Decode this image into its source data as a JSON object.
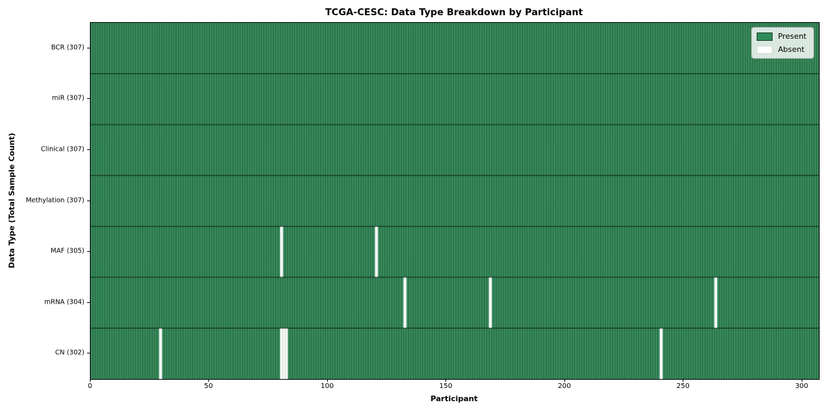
{
  "chart_data": {
    "type": "heatmap",
    "title": "TCGA-CESC: Data Type Breakdown by Participant",
    "xlabel": "Participant",
    "ylabel": "Data Type (Total Sample Count)",
    "n_participants": 307,
    "x_ticks": [
      0,
      50,
      100,
      150,
      200,
      250,
      300
    ],
    "rows": [
      {
        "label": "BCR (307)",
        "total": 307,
        "absent_participants": []
      },
      {
        "label": "miR (307)",
        "total": 307,
        "absent_participants": []
      },
      {
        "label": "Clinical (307)",
        "total": 307,
        "absent_participants": []
      },
      {
        "label": "Methylation (307)",
        "total": 307,
        "absent_participants": []
      },
      {
        "label": "MAF (305)",
        "total": 305,
        "absent_participants": [
          80,
          120
        ]
      },
      {
        "label": "mRNA (304)",
        "total": 304,
        "absent_participants": [
          132,
          168,
          263
        ]
      },
      {
        "label": "CN (302)",
        "total": 302,
        "absent_participants": [
          29,
          80,
          81,
          82,
          240
        ]
      }
    ],
    "legend": [
      {
        "label": "Present",
        "color": "#2f8c58",
        "edge": "rgba(0,0,0,0.55)"
      },
      {
        "label": "Absent",
        "color": "#ffffff",
        "edge": "#d4d7d4"
      }
    ],
    "colors": {
      "present": "#3a9160",
      "absent": "#ffffff",
      "cell_border": "#10301e",
      "row_border": "rgba(0,0,0,0.85)",
      "absent_run_separator": "#c3cdc5"
    },
    "legend_position": "upper right",
    "grid": "cell-borders"
  }
}
